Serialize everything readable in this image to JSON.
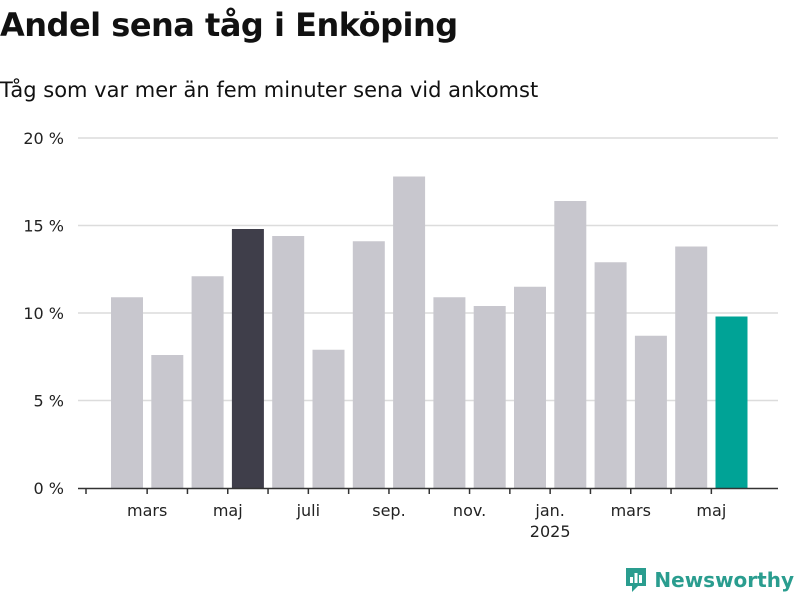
{
  "chart_data": {
    "type": "bar",
    "title": "Andel sena tåg i Enköping",
    "subtitle": "Tåg som var mer än fem minuter sena vid ankomst",
    "ylim": [
      0,
      20
    ],
    "y_ticks": [
      0,
      5,
      10,
      15,
      20
    ],
    "y_tick_labels": [
      "0 %",
      "5 %",
      "10 %",
      "15 %",
      "20 %"
    ],
    "x_labels": [
      {
        "label": "mars",
        "index": 1
      },
      {
        "label": "maj",
        "index": 3
      },
      {
        "label": "juli",
        "index": 5
      },
      {
        "label": "sep.",
        "index": 7
      },
      {
        "label": "nov.",
        "index": 9
      },
      {
        "label": "jan.",
        "sublabel": "2025",
        "index": 11
      },
      {
        "label": "mars",
        "index": 13
      },
      {
        "label": "maj",
        "index": 15
      }
    ],
    "values": [
      10.9,
      7.6,
      12.1,
      14.8,
      14.4,
      7.9,
      14.1,
      17.8,
      10.9,
      10.4,
      11.5,
      16.4,
      12.9,
      8.7,
      13.8,
      9.8
    ],
    "colors": {
      "default": "#c8c7ce",
      "highlight_previous_year": "#3f3e4a",
      "highlight_current": "#00a396"
    },
    "highlight_indices": {
      "previous_year": 3,
      "current": 15
    },
    "grid": true
  },
  "branding": {
    "logo_text": "Newsworthy",
    "logo_icon": "bar-chart-bubble-icon",
    "logo_color": "#2a9d8f"
  }
}
